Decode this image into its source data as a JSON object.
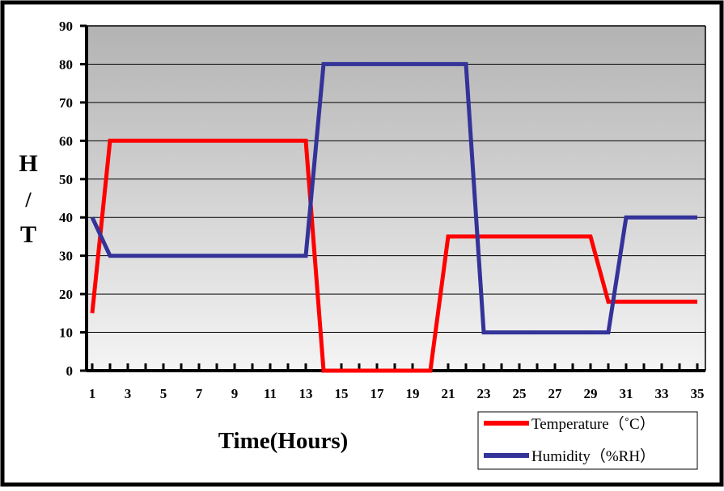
{
  "chart_data": {
    "type": "line",
    "title": "",
    "xlabel": "Time(Hours)",
    "ylabel": "H/T",
    "ylabel_lines": [
      "H",
      "/",
      "T"
    ],
    "x": [
      1,
      2,
      3,
      4,
      5,
      6,
      7,
      8,
      9,
      10,
      11,
      12,
      13,
      14,
      15,
      16,
      17,
      18,
      19,
      20,
      21,
      22,
      23,
      24,
      25,
      26,
      27,
      28,
      29,
      30,
      31,
      32,
      33,
      34,
      35
    ],
    "xlim": [
      1,
      35
    ],
    "x_tick_labels": [
      "1",
      "3",
      "5",
      "7",
      "9",
      "11",
      "13",
      "15",
      "17",
      "19",
      "21",
      "23",
      "25",
      "27",
      "29",
      "31",
      "33",
      "35"
    ],
    "ylim": [
      0,
      90
    ],
    "y_ticks": [
      0,
      10,
      20,
      30,
      40,
      50,
      60,
      70,
      80,
      90
    ],
    "grid": true,
    "legend": "bottom-right",
    "background": "gradient-gray",
    "series": [
      {
        "name": "Temperature（˚C）",
        "color": "#ff0000",
        "values": [
          15,
          60,
          60,
          60,
          60,
          60,
          60,
          60,
          60,
          60,
          60,
          60,
          60,
          0,
          0,
          0,
          0,
          0,
          0,
          0,
          35,
          35,
          35,
          35,
          35,
          35,
          35,
          35,
          35,
          18,
          18,
          18,
          18,
          18,
          18
        ]
      },
      {
        "name": "Humidity（%RH）",
        "color": "#333399",
        "values": [
          40,
          30,
          30,
          30,
          30,
          30,
          30,
          30,
          30,
          30,
          30,
          30,
          30,
          80,
          80,
          80,
          80,
          80,
          80,
          80,
          80,
          80,
          10,
          10,
          10,
          10,
          10,
          10,
          10,
          10,
          40,
          40,
          40,
          40,
          40
        ]
      }
    ]
  }
}
